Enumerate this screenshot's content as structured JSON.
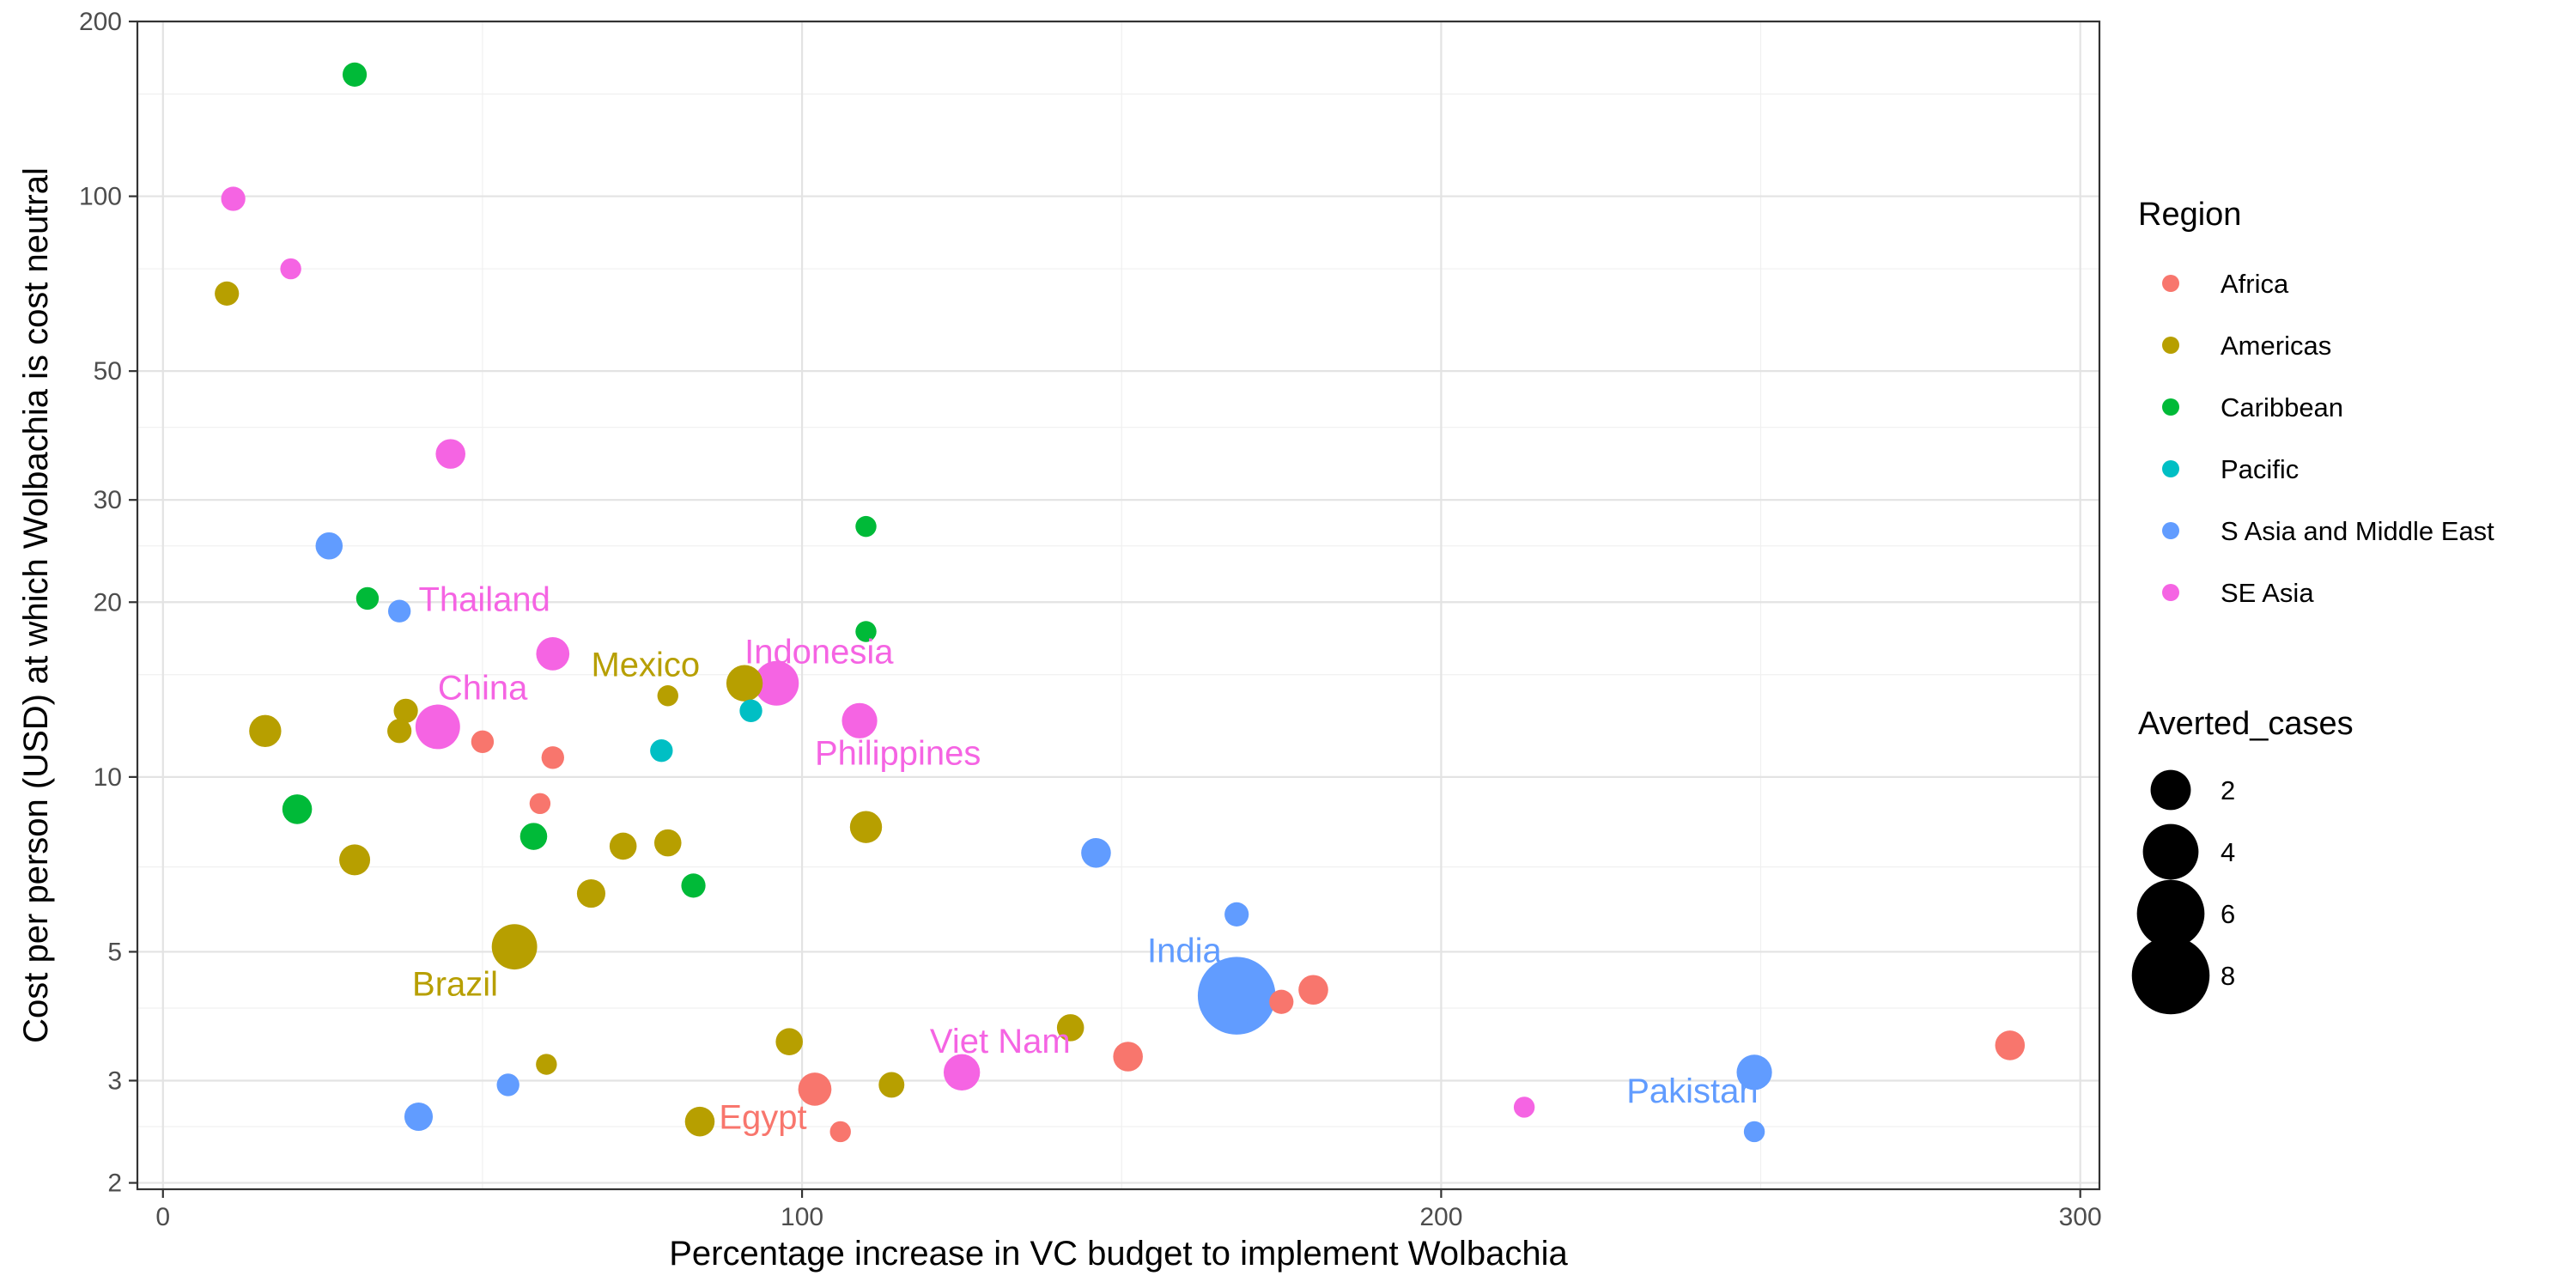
{
  "chart_data": {
    "type": "scatter",
    "title": "",
    "xlabel": "Percentage increase in VC budget to implement Wolbachia",
    "ylabel": "Cost per person (USD) at which Wolbachia is cost neutral",
    "xlim": [
      -4,
      303
    ],
    "ylim": [
      1.95,
      200
    ],
    "y_scale": "log",
    "x_ticks": [
      0,
      100,
      200,
      300
    ],
    "y_ticks": [
      2,
      3,
      5,
      10,
      20,
      30,
      50,
      100,
      200
    ],
    "grid": true,
    "legend_position": "right",
    "color_legend": {
      "title": "Region",
      "items": [
        {
          "name": "Africa",
          "color": "#F8766D"
        },
        {
          "name": "Americas",
          "color": "#B79F00"
        },
        {
          "name": "Caribbean",
          "color": "#00BA38"
        },
        {
          "name": "Pacific",
          "color": "#00BFC4"
        },
        {
          "name": "S Asia and Middle East",
          "color": "#619CFF"
        },
        {
          "name": "SE Asia",
          "color": "#F564E3"
        }
      ]
    },
    "size_legend": {
      "title": "Averted_cases",
      "values": [
        2,
        4,
        6,
        8
      ],
      "labels": [
        "2",
        "4",
        "6",
        "8"
      ]
    },
    "points": [
      {
        "region": "Africa",
        "x": 50,
        "y": 11.5,
        "size": 0.5
      },
      {
        "region": "Africa",
        "x": 61,
        "y": 10.8,
        "size": 0.5
      },
      {
        "region": "Africa",
        "x": 59,
        "y": 9.0,
        "size": 0.4
      },
      {
        "region": "Africa",
        "x": 102,
        "y": 2.9,
        "size": 1.3
      },
      {
        "region": "Africa",
        "x": 106,
        "y": 2.45,
        "size": 0.4
      },
      {
        "region": "Africa",
        "x": 151,
        "y": 3.3,
        "size": 1.0
      },
      {
        "region": "Africa",
        "x": 175,
        "y": 4.1,
        "size": 0.6
      },
      {
        "region": "Africa",
        "x": 180,
        "y": 4.3,
        "size": 1.0
      },
      {
        "region": "Africa",
        "x": 289,
        "y": 3.45,
        "size": 1.0
      },
      {
        "region": "Americas",
        "x": 10,
        "y": 68,
        "size": 0.6
      },
      {
        "region": "Americas",
        "x": 16,
        "y": 12.0,
        "size": 1.2
      },
      {
        "region": "Americas",
        "x": 38,
        "y": 13.0,
        "size": 0.6
      },
      {
        "region": "Americas",
        "x": 37,
        "y": 12.0,
        "size": 0.6
      },
      {
        "region": "Americas",
        "x": 30,
        "y": 7.2,
        "size": 1.1
      },
      {
        "region": "Americas",
        "x": 55,
        "y": 5.1,
        "size": 2.6
      },
      {
        "region": "Americas",
        "x": 60,
        "y": 3.2,
        "size": 0.4
      },
      {
        "region": "Americas",
        "x": 67,
        "y": 6.3,
        "size": 0.9
      },
      {
        "region": "Americas",
        "x": 72,
        "y": 7.6,
        "size": 0.8
      },
      {
        "region": "Americas",
        "x": 79,
        "y": 7.7,
        "size": 0.8
      },
      {
        "region": "Americas",
        "x": 79,
        "y": 13.8,
        "size": 0.4
      },
      {
        "region": "Americas",
        "x": 84,
        "y": 2.55,
        "size": 1.0
      },
      {
        "region": "Americas",
        "x": 91,
        "y": 14.5,
        "size": 1.6
      },
      {
        "region": "Americas",
        "x": 98,
        "y": 3.5,
        "size": 0.8
      },
      {
        "region": "Americas",
        "x": 110,
        "y": 8.2,
        "size": 1.2
      },
      {
        "region": "Americas",
        "x": 114,
        "y": 2.95,
        "size": 0.7
      },
      {
        "region": "Americas",
        "x": 142,
        "y": 3.7,
        "size": 0.8
      },
      {
        "region": "Caribbean",
        "x": 30,
        "y": 162,
        "size": 0.6
      },
      {
        "region": "Caribbean",
        "x": 32,
        "y": 20.3,
        "size": 0.5
      },
      {
        "region": "Caribbean",
        "x": 21,
        "y": 8.8,
        "size": 1.0
      },
      {
        "region": "Caribbean",
        "x": 58,
        "y": 7.9,
        "size": 0.8
      },
      {
        "region": "Caribbean",
        "x": 83,
        "y": 6.5,
        "size": 0.6
      },
      {
        "region": "Caribbean",
        "x": 110,
        "y": 27,
        "size": 0.4
      },
      {
        "region": "Caribbean",
        "x": 110,
        "y": 17.8,
        "size": 0.4
      },
      {
        "region": "Pacific",
        "x": 78,
        "y": 11.1,
        "size": 0.5
      },
      {
        "region": "Pacific",
        "x": 92,
        "y": 13.0,
        "size": 0.5
      },
      {
        "region": "S Asia and Middle East",
        "x": 26,
        "y": 25.0,
        "size": 0.8
      },
      {
        "region": "S Asia and Middle East",
        "x": 37,
        "y": 19.3,
        "size": 0.5
      },
      {
        "region": "S Asia and Middle East",
        "x": 40,
        "y": 2.6,
        "size": 0.9
      },
      {
        "region": "S Asia and Middle East",
        "x": 54,
        "y": 2.95,
        "size": 0.5
      },
      {
        "region": "S Asia and Middle East",
        "x": 146,
        "y": 7.4,
        "size": 1.0
      },
      {
        "region": "S Asia and Middle East",
        "x": 168,
        "y": 5.8,
        "size": 0.6
      },
      {
        "region": "S Asia and Middle East",
        "x": 168,
        "y": 4.2,
        "size": 8.0
      },
      {
        "region": "S Asia and Middle East",
        "x": 168,
        "y": 3.8,
        "size": 0.4
      },
      {
        "region": "S Asia and Middle East",
        "x": 249,
        "y": 3.1,
        "size": 1.5
      },
      {
        "region": "S Asia and Middle East",
        "x": 249,
        "y": 2.45,
        "size": 0.4
      },
      {
        "region": "SE Asia",
        "x": 11,
        "y": 99,
        "size": 0.6
      },
      {
        "region": "SE Asia",
        "x": 20,
        "y": 75,
        "size": 0.4
      },
      {
        "region": "SE Asia",
        "x": 45,
        "y": 36,
        "size": 1.0
      },
      {
        "region": "SE Asia",
        "x": 61,
        "y": 16.3,
        "size": 1.3
      },
      {
        "region": "SE Asia",
        "x": 43,
        "y": 12.2,
        "size": 2.5
      },
      {
        "region": "SE Asia",
        "x": 96,
        "y": 14.5,
        "size": 2.5
      },
      {
        "region": "SE Asia",
        "x": 109,
        "y": 12.5,
        "size": 1.5
      },
      {
        "region": "SE Asia",
        "x": 125,
        "y": 3.1,
        "size": 1.6
      },
      {
        "region": "SE Asia",
        "x": 213,
        "y": 2.7,
        "size": 0.4
      }
    ],
    "annotations": [
      {
        "text": "Thailand",
        "region": "SE Asia",
        "x": 40,
        "y": 19.3
      },
      {
        "text": "China",
        "region": "SE Asia",
        "x": 43,
        "y": 13.6
      },
      {
        "text": "Mexico",
        "region": "Americas",
        "x": 67,
        "y": 14.9
      },
      {
        "text": "Indonesia",
        "region": "SE Asia",
        "x": 91,
        "y": 15.7
      },
      {
        "text": "Philippines",
        "region": "SE Asia",
        "x": 102,
        "y": 10.5
      },
      {
        "text": "Brazil",
        "region": "Americas",
        "x": 39,
        "y": 4.2
      },
      {
        "text": "India",
        "region": "S Asia and Middle East",
        "x": 154,
        "y": 4.8
      },
      {
        "text": "Viet Nam",
        "region": "SE Asia",
        "x": 120,
        "y": 3.35
      },
      {
        "text": "Egypt",
        "region": "Africa",
        "x": 87,
        "y": 2.48
      },
      {
        "text": "Pakistan",
        "region": "S Asia and Middle East",
        "x": 229,
        "y": 2.75
      }
    ]
  }
}
